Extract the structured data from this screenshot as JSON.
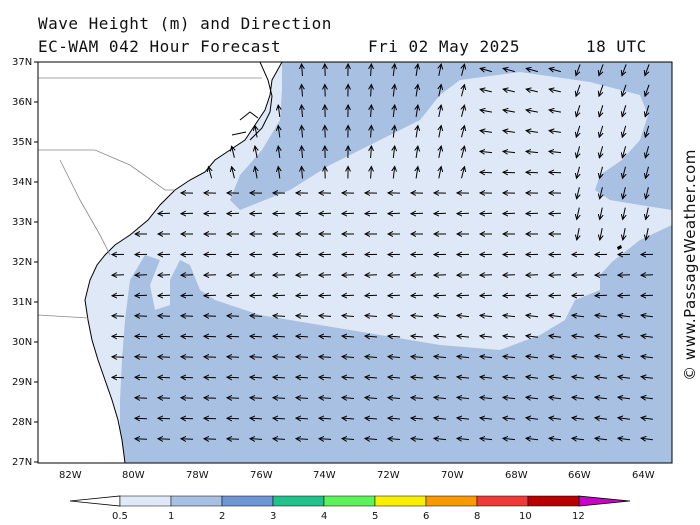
{
  "title": {
    "line1": "Wave Height (m) and Direction",
    "line2": "EC-WAM 042 Hour Forecast",
    "date": "Fri 02 May 2025",
    "time": "18 UTC"
  },
  "credit": "© www.PassageWeather.com",
  "axes": {
    "lat_labels": [
      "37N",
      "36N",
      "35N",
      "34N",
      "33N",
      "32N",
      "31N",
      "30N",
      "29N",
      "28N",
      "27N"
    ],
    "lon_labels": [
      "82W",
      "80W",
      "78W",
      "76W",
      "74W",
      "72W",
      "70W",
      "68W",
      "66W",
      "64W"
    ]
  },
  "legend": {
    "ticks": [
      "0.5",
      "1",
      "2",
      "3",
      "4",
      "5",
      "6",
      "8",
      "10",
      "12"
    ],
    "colors": [
      "#dfe8f6",
      "#a8c0e2",
      "#6f96d4",
      "#22c08a",
      "#5ef25a",
      "#f6f000",
      "#f79a00",
      "#ef3a3a",
      "#b80000",
      "#c800c8"
    ]
  },
  "colors": {
    "sea_low": "#dfe8f6",
    "sea_mid": "#a8c0e2",
    "land": "#ffffff",
    "coast": "#000000"
  }
}
